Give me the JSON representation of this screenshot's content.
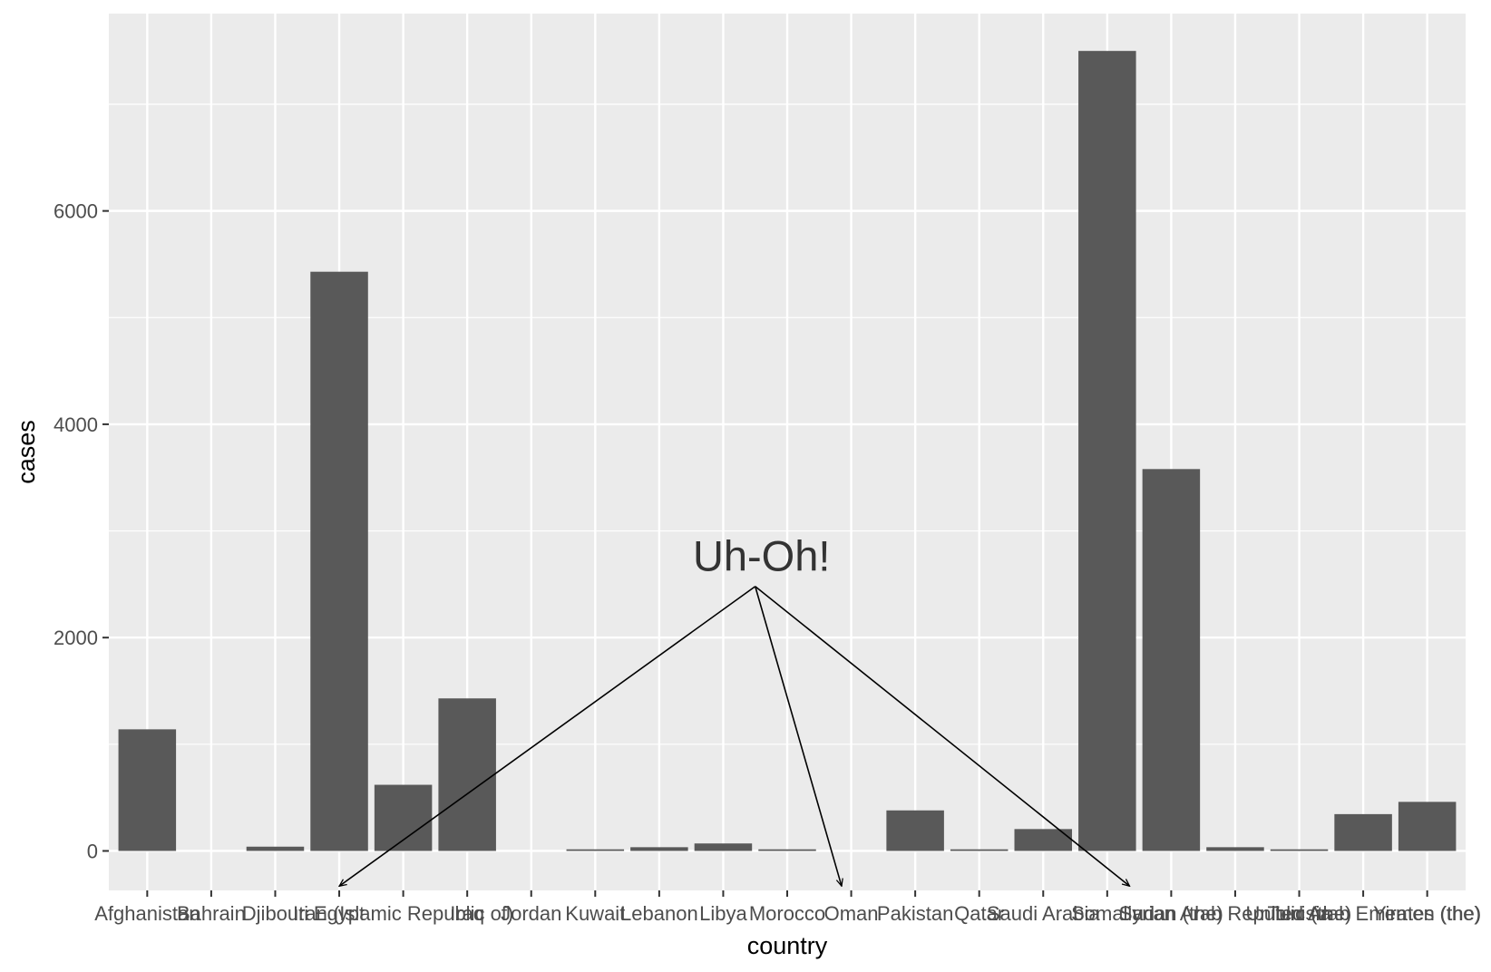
{
  "chart_data": {
    "type": "bar",
    "title": "",
    "xlabel": "country",
    "ylabel": "cases",
    "categories": [
      "Afghanistan",
      "Bahrain",
      "Djibouti",
      "Egypt",
      "Iran (Islamic Republic of)",
      "Iraq",
      "Jordan",
      "Kuwait",
      "Lebanon",
      "Libya",
      "Morocco",
      "Oman",
      "Pakistan",
      "Qatar",
      "Saudi Arabia",
      "Somalia",
      "Sudan (the)",
      "Syrian Arab Republic (the)",
      "Tunisia",
      "United Arab Emirates (the)",
      "Yemen (the)"
    ],
    "values": [
      1140,
      0,
      40,
      5430,
      620,
      1430,
      0,
      15,
      35,
      70,
      15,
      0,
      380,
      15,
      205,
      7500,
      3580,
      35,
      15,
      345,
      460
    ],
    "ylim": [
      -370,
      7850
    ],
    "yticks": [
      0,
      2000,
      4000,
      6000
    ],
    "grid": true,
    "legend": "none",
    "bar_color": "#595959",
    "panel_color": "#ebebeb",
    "annotation": {
      "text": "Uh-Oh!",
      "anchor_category_pos": 9.5,
      "anchor_value": 2480,
      "arrow_targets": [
        {
          "category_pos": 3.0,
          "value": -330
        },
        {
          "category_pos": 10.85,
          "value": -330
        },
        {
          "category_pos": 15.35,
          "value": -330
        }
      ]
    }
  }
}
